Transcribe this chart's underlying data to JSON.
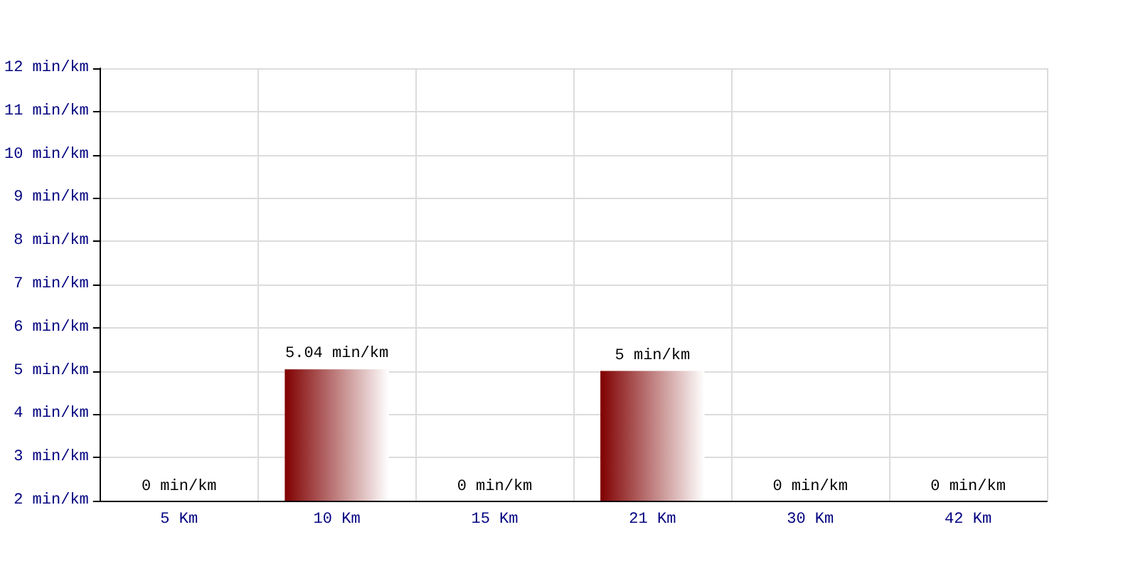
{
  "chart_data": {
    "type": "bar",
    "categories": [
      "5 Km",
      "10 Km",
      "15 Km",
      "21 Km",
      "30 Km",
      "42 Km"
    ],
    "values": [
      null,
      5.04,
      null,
      5,
      null,
      null
    ],
    "value_labels": [
      "0 min/km",
      "5.04 min/km",
      "0 min/km",
      "5 min/km",
      "0 min/km",
      "0 min/km"
    ],
    "color": "#800000",
    "ylim": [
      2,
      12
    ],
    "yticks": [
      {
        "value": 2,
        "label": "2 min/km"
      },
      {
        "value": 3,
        "label": "3 min/km"
      },
      {
        "value": 4,
        "label": "4 min/km"
      },
      {
        "value": 5,
        "label": "5 min/km"
      },
      {
        "value": 6,
        "label": "6 min/km"
      },
      {
        "value": 7,
        "label": "7 min/km"
      },
      {
        "value": 8,
        "label": "8 min/km"
      },
      {
        "value": 9,
        "label": "9 min/km"
      },
      {
        "value": 10,
        "label": "10 min/km"
      },
      {
        "value": 11,
        "label": "11 min/km"
      },
      {
        "value": 12,
        "label": "12 min/km"
      }
    ],
    "grid": true
  }
}
